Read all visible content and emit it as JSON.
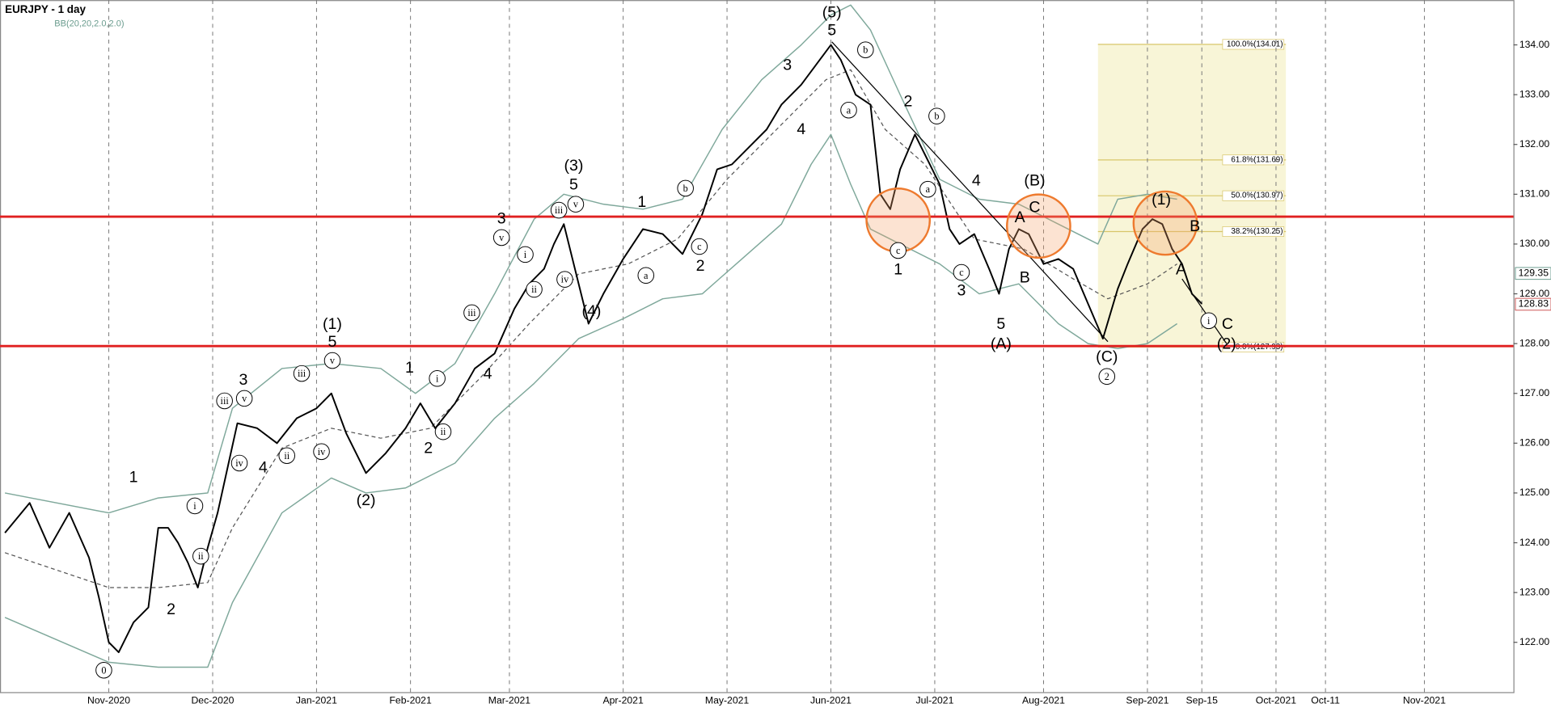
{
  "chart_data": {
    "type": "line",
    "title": "EURJPY - 1 day",
    "subtitle": "BB(20,20,2.0,2.0)",
    "xlim": [
      -22,
      284
    ],
    "ylim": [
      121,
      134.9
    ],
    "xticks": [
      {
        "value": 0,
        "label": "Nov-2020"
      },
      {
        "value": 21,
        "label": "Dec-2020"
      },
      {
        "value": 42,
        "label": "Jan-2021"
      },
      {
        "value": 61,
        "label": "Feb-2021"
      },
      {
        "value": 81,
        "label": "Mar-2021"
      },
      {
        "value": 104,
        "label": "Apr-2021"
      },
      {
        "value": 125,
        "label": "May-2021"
      },
      {
        "value": 146,
        "label": "Jun-2021"
      },
      {
        "value": 167,
        "label": "Jul-2021"
      },
      {
        "value": 189,
        "label": "Aug-2021"
      },
      {
        "value": 210,
        "label": "Sep-2021"
      },
      {
        "value": 221,
        "label": "Sep-15"
      },
      {
        "value": 236,
        "label": "Oct-2021"
      },
      {
        "value": 246,
        "label": "Oct-11"
      },
      {
        "value": 266,
        "label": "Nov-2021"
      }
    ],
    "yticks": [
      {
        "value": 122,
        "label": "122.00"
      },
      {
        "value": 123,
        "label": "123.00"
      },
      {
        "value": 124,
        "label": "124.00"
      },
      {
        "value": 125,
        "label": "125.00"
      },
      {
        "value": 126,
        "label": "126.00"
      },
      {
        "value": 127,
        "label": "127.00"
      },
      {
        "value": 128,
        "label": "128.00"
      },
      {
        "value": 129,
        "label": "129.00"
      },
      {
        "value": 130,
        "label": "130.00"
      },
      {
        "value": 131,
        "label": "131.00"
      },
      {
        "value": 132,
        "label": "132.00"
      },
      {
        "value": 133,
        "label": "133.00"
      },
      {
        "value": 134,
        "label": "134.00"
      }
    ],
    "series": [
      {
        "color": "#000000",
        "width": 1.6,
        "x": [
          -21,
          -16,
          -12,
          -8,
          -4,
          -2,
          0,
          2,
          5,
          8,
          10,
          12,
          14,
          16,
          18,
          20,
          22,
          24,
          26,
          30,
          34,
          38,
          42,
          45,
          48,
          52,
          56,
          60,
          63,
          66,
          70,
          74,
          78,
          82,
          85,
          88,
          90,
          92,
          95,
          97,
          100,
          104,
          108,
          112,
          116,
          120,
          123,
          126,
          130,
          133,
          136,
          140,
          143,
          146,
          148,
          151,
          154,
          156,
          158,
          160,
          163,
          166,
          168,
          170,
          172,
          175,
          178,
          180,
          182,
          184,
          186,
          189,
          192,
          195,
          198,
          201,
          204,
          206,
          209,
          211,
          213,
          215,
          217,
          219,
          221
        ],
        "values": [
          124.2,
          124.8,
          123.9,
          124.6,
          123.7,
          122.9,
          122.0,
          121.8,
          122.4,
          122.7,
          124.3,
          124.3,
          124.0,
          123.6,
          123.1,
          123.9,
          124.6,
          125.5,
          126.4,
          126.3,
          126.0,
          126.5,
          126.7,
          127.0,
          126.2,
          125.4,
          125.8,
          126.3,
          126.8,
          126.3,
          126.8,
          127.5,
          127.8,
          128.7,
          129.2,
          129.5,
          130.0,
          130.4,
          129.2,
          128.4,
          129.0,
          129.7,
          130.3,
          130.2,
          129.8,
          130.6,
          131.5,
          131.6,
          132.0,
          132.3,
          132.8,
          133.2,
          133.6,
          134.0,
          133.7,
          133.0,
          132.8,
          131.0,
          130.7,
          131.5,
          132.2,
          131.6,
          131.2,
          130.3,
          130.0,
          130.2,
          129.5,
          129.0,
          129.9,
          130.3,
          130.2,
          129.6,
          129.7,
          129.5,
          128.8,
          128.1,
          129.1,
          129.6,
          130.3,
          130.5,
          130.4,
          129.9,
          129.6,
          129.0,
          128.8
        ]
      },
      {
        "color": "#7fa89b",
        "width": 1.2,
        "x": [
          -21,
          0,
          10,
          20,
          25,
          35,
          45,
          55,
          62,
          70,
          78,
          86,
          92,
          100,
          108,
          116,
          124,
          132,
          140,
          146,
          150,
          154,
          160,
          168,
          176,
          184,
          192,
          200,
          204,
          210,
          216
        ],
        "values": [
          125.0,
          124.6,
          124.9,
          125.0,
          126.7,
          127.5,
          127.6,
          127.5,
          127.0,
          127.6,
          129.0,
          130.5,
          131.0,
          130.8,
          130.7,
          130.9,
          132.3,
          133.3,
          134.0,
          134.6,
          134.8,
          134.3,
          133.0,
          131.3,
          130.9,
          130.8,
          130.4,
          130.0,
          130.9,
          131.0,
          130.9
        ]
      },
      {
        "color": "#555555",
        "width": 1,
        "dash": "4 3",
        "x": [
          -21,
          0,
          10,
          20,
          25,
          35,
          45,
          55,
          65,
          75,
          85,
          95,
          105,
          115,
          125,
          135,
          145,
          150,
          157,
          165,
          175,
          185,
          195,
          202,
          210,
          216
        ],
        "values": [
          123.8,
          123.1,
          123.1,
          123.2,
          124.3,
          125.9,
          126.3,
          126.1,
          126.3,
          127.3,
          128.4,
          129.4,
          129.6,
          130.1,
          131.3,
          132.3,
          133.3,
          133.5,
          132.3,
          131.6,
          130.1,
          129.9,
          129.3,
          128.9,
          129.2,
          129.6
        ]
      },
      {
        "color": "#7fa89b",
        "width": 1.2,
        "x": [
          -21,
          0,
          10,
          20,
          25,
          35,
          45,
          52,
          60,
          70,
          78,
          86,
          95,
          104,
          112,
          120,
          128,
          136,
          142,
          146,
          150,
          154,
          160,
          168,
          176,
          184,
          192,
          198,
          204,
          210,
          216
        ],
        "values": [
          122.5,
          121.6,
          121.5,
          121.5,
          122.8,
          124.6,
          125.3,
          125.0,
          125.1,
          125.6,
          126.5,
          127.2,
          128.1,
          128.5,
          128.9,
          129.0,
          129.7,
          130.4,
          131.6,
          132.2,
          131.2,
          130.3,
          130.0,
          129.6,
          129.0,
          129.2,
          128.4,
          128.0,
          127.9,
          128.0,
          128.4
        ]
      }
    ],
    "levels": [
      130.55,
      127.95
    ],
    "level_color": "#e02020",
    "fib_range": [
      200,
      238
    ],
    "fib_levels": [
      {
        "value": 134.01,
        "label": "100.0%(134.01)"
      },
      {
        "value": 131.69,
        "label": "61.8%(131.69)"
      },
      {
        "value": 130.97,
        "label": "50.0%(130.97)"
      },
      {
        "value": 130.25,
        "label": "38.2%(130.25)"
      },
      {
        "value": 127.93,
        "label": "0.0%(127.93)"
      }
    ],
    "price_tags": [
      129.35,
      128.83
    ],
    "highlights": [
      {
        "x": 159.6,
        "y": 130.48
      },
      {
        "x": 188,
        "y": 130.36
      },
      {
        "x": 213.6,
        "y": 130.42
      }
    ],
    "trend_lines": [
      [
        146.2,
        134.06,
        202,
        128.04
      ],
      [
        217,
        129.3,
        226,
        128.0
      ]
    ],
    "annotations": [
      {
        "text": "0",
        "x": -1,
        "y": 121.44,
        "circled": true
      },
      {
        "text": "1",
        "x": 5,
        "y": 125.32
      },
      {
        "text": "2",
        "x": 12.6,
        "y": 122.67
      },
      {
        "text": "i",
        "x": 17.4,
        "y": 124.74,
        "circled": true
      },
      {
        "text": "ii",
        "x": 18.6,
        "y": 123.73,
        "circled": true
      },
      {
        "text": "iii",
        "x": 23.4,
        "y": 126.85,
        "circled": true
      },
      {
        "text": "iv",
        "x": 26.4,
        "y": 125.6,
        "circled": true
      },
      {
        "text": "3",
        "x": 27.2,
        "y": 127.28
      },
      {
        "text": "v",
        "x": 27.4,
        "y": 126.9,
        "circled": true
      },
      {
        "text": "4",
        "x": 31.2,
        "y": 125.52
      },
      {
        "text": "ii",
        "x": 36,
        "y": 125.75,
        "circled": true
      },
      {
        "text": "iii",
        "x": 39,
        "y": 127.4,
        "circled": true
      },
      {
        "text": "iv",
        "x": 43,
        "y": 125.83,
        "circled": true
      },
      {
        "text": "(1)",
        "x": 45.2,
        "y": 128.4
      },
      {
        "text": "5",
        "x": 45.2,
        "y": 128.04
      },
      {
        "text": "v",
        "x": 45.2,
        "y": 127.66,
        "circled": true
      },
      {
        "text": "(2)",
        "x": 52,
        "y": 124.86
      },
      {
        "text": "1",
        "x": 60.8,
        "y": 127.52
      },
      {
        "text": "2",
        "x": 64.6,
        "y": 125.91
      },
      {
        "text": "i",
        "x": 66.4,
        "y": 127.3,
        "circled": true
      },
      {
        "text": "ii",
        "x": 67.6,
        "y": 126.23,
        "circled": true
      },
      {
        "text": "iii",
        "x": 73.4,
        "y": 128.62,
        "circled": true
      },
      {
        "text": "4",
        "x": 76.6,
        "y": 127.4
      },
      {
        "text": "3",
        "x": 79.4,
        "y": 130.52
      },
      {
        "text": "v",
        "x": 79.4,
        "y": 130.13,
        "circled": true
      },
      {
        "text": "i",
        "x": 84.2,
        "y": 129.79,
        "circled": true
      },
      {
        "text": "ii",
        "x": 86,
        "y": 129.09,
        "circled": true
      },
      {
        "text": "iii",
        "x": 91,
        "y": 130.68,
        "circled": true
      },
      {
        "text": "iv",
        "x": 92.2,
        "y": 129.29,
        "circled": true
      },
      {
        "text": "(3)",
        "x": 94,
        "y": 131.58
      },
      {
        "text": "5",
        "x": 94,
        "y": 131.2
      },
      {
        "text": "v",
        "x": 94.4,
        "y": 130.8,
        "circled": true
      },
      {
        "text": "(4)",
        "x": 97.6,
        "y": 128.66
      },
      {
        "text": "1",
        "x": 107.8,
        "y": 130.85
      },
      {
        "text": "a",
        "x": 108.6,
        "y": 129.37,
        "circled": true
      },
      {
        "text": "b",
        "x": 116.6,
        "y": 131.12,
        "circled": true
      },
      {
        "text": "c",
        "x": 119.4,
        "y": 129.95,
        "circled": true
      },
      {
        "text": "2",
        "x": 119.6,
        "y": 129.57
      },
      {
        "text": "3",
        "x": 137.2,
        "y": 133.6
      },
      {
        "text": "4",
        "x": 140,
        "y": 132.31
      },
      {
        "text": "(5)",
        "x": 146.2,
        "y": 134.66
      },
      {
        "text": "5",
        "x": 146.2,
        "y": 134.3
      },
      {
        "text": "a",
        "x": 149.6,
        "y": 132.69,
        "circled": true
      },
      {
        "text": "b",
        "x": 153,
        "y": 133.9,
        "circled": true
      },
      {
        "text": "c",
        "x": 159.6,
        "y": 129.87,
        "circled": true
      },
      {
        "text": "1",
        "x": 159.6,
        "y": 129.49
      },
      {
        "text": "2",
        "x": 161.6,
        "y": 132.87
      },
      {
        "text": "a",
        "x": 165.6,
        "y": 131.1,
        "circled": true
      },
      {
        "text": "b",
        "x": 167.4,
        "y": 132.57,
        "circled": true
      },
      {
        "text": "c",
        "x": 172.4,
        "y": 129.43,
        "circled": true
      },
      {
        "text": "3",
        "x": 172.4,
        "y": 129.07
      },
      {
        "text": "4",
        "x": 175.4,
        "y": 131.28
      },
      {
        "text": "5",
        "x": 180.4,
        "y": 128.4
      },
      {
        "text": "(A)",
        "x": 180.4,
        "y": 128.0
      },
      {
        "text": "A",
        "x": 184.2,
        "y": 130.54
      },
      {
        "text": "B",
        "x": 185.2,
        "y": 129.33
      },
      {
        "text": "(B)",
        "x": 187.2,
        "y": 131.28
      },
      {
        "text": "C",
        "x": 187.2,
        "y": 130.74
      },
      {
        "text": "(C)",
        "x": 201.8,
        "y": 127.74
      },
      {
        "text": "2",
        "x": 201.8,
        "y": 127.34,
        "circled": true
      },
      {
        "text": "(1)",
        "x": 212.8,
        "y": 130.9
      },
      {
        "text": "A",
        "x": 216.8,
        "y": 129.49
      },
      {
        "text": "B",
        "x": 219.6,
        "y": 130.36
      },
      {
        "text": "i",
        "x": 222.4,
        "y": 128.46,
        "circled": true
      },
      {
        "text": "C",
        "x": 226.2,
        "y": 128.4
      },
      {
        "text": "(2)",
        "x": 226,
        "y": 128.0
      }
    ]
  }
}
